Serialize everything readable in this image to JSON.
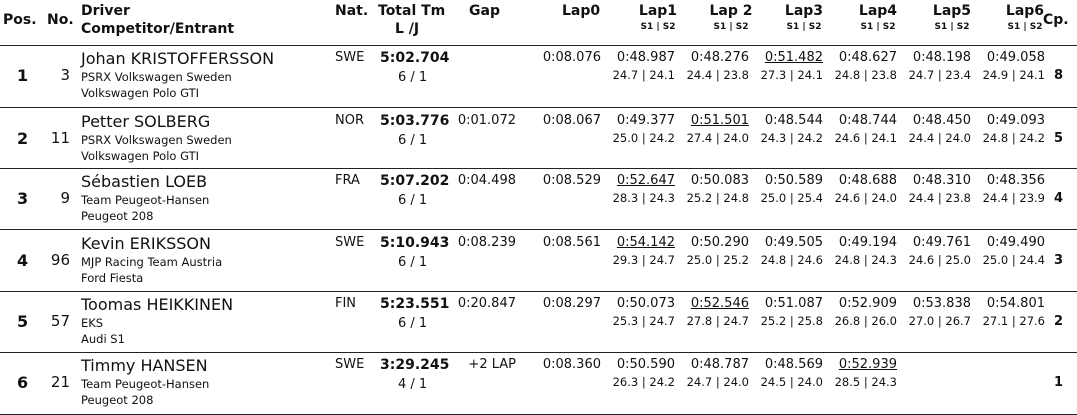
{
  "header": {
    "pos": "Pos.",
    "no": "No.",
    "driver": "Driver",
    "competitor": "Competitor/Entrant",
    "nat": "Nat.",
    "total": "Total Tm",
    "lj": "L /J",
    "gap": "Gap",
    "lap0": "Lap0",
    "laps": [
      "Lap1",
      "Lap 2",
      "Lap3",
      "Lap4",
      "Lap5",
      "Lap6"
    ],
    "split": "S1 | S2",
    "cp": "Cp."
  },
  "rows": [
    {
      "pos": "1",
      "no": "3",
      "driver": "Johan KRISTOFFERSSON",
      "team": "PSRX Volkswagen Sweden",
      "car": "Volkswagen Polo GTI",
      "nat": "SWE",
      "total": "5:02.704",
      "lj": "6 / 1",
      "gap": "",
      "lap0": "0:08.076",
      "laps": [
        {
          "t": "0:48.987",
          "s": "24.7 | 24.1",
          "u": false
        },
        {
          "t": "0:48.276",
          "s": "24.4 | 23.8",
          "u": false
        },
        {
          "t": "0:51.482",
          "s": "27.3 | 24.1",
          "u": true
        },
        {
          "t": "0:48.627",
          "s": "24.8 | 23.8",
          "u": false
        },
        {
          "t": "0:48.198",
          "s": "24.7 | 23.4",
          "u": false
        },
        {
          "t": "0:49.058",
          "s": "24.9 | 24.1",
          "u": false
        }
      ],
      "cp": "8"
    },
    {
      "pos": "2",
      "no": "11",
      "driver": "Petter SOLBERG",
      "team": "PSRX Volkswagen Sweden",
      "car": "Volkswagen Polo GTI",
      "nat": "NOR",
      "total": "5:03.776",
      "lj": "6 / 1",
      "gap": "0:01.072",
      "lap0": "0:08.067",
      "laps": [
        {
          "t": "0:49.377",
          "s": "25.0 | 24.2",
          "u": false
        },
        {
          "t": "0:51.501",
          "s": "27.4 | 24.0",
          "u": true
        },
        {
          "t": "0:48.544",
          "s": "24.3 | 24.2",
          "u": false
        },
        {
          "t": "0:48.744",
          "s": "24.6 | 24.1",
          "u": false
        },
        {
          "t": "0:48.450",
          "s": "24.4 | 24.0",
          "u": false
        },
        {
          "t": "0:49.093",
          "s": "24.8 | 24.2",
          "u": false
        }
      ],
      "cp": "5"
    },
    {
      "pos": "3",
      "no": "9",
      "driver": "Sébastien LOEB",
      "team": "Team Peugeot-Hansen",
      "car": "Peugeot 208",
      "nat": "FRA",
      "total": "5:07.202",
      "lj": "6 / 1",
      "gap": "0:04.498",
      "lap0": "0:08.529",
      "laps": [
        {
          "t": "0:52.647",
          "s": "28.3 | 24.3",
          "u": true
        },
        {
          "t": "0:50.083",
          "s": "25.2 | 24.8",
          "u": false
        },
        {
          "t": "0:50.589",
          "s": "25.0 | 25.4",
          "u": false
        },
        {
          "t": "0:48.688",
          "s": "24.6 | 24.0",
          "u": false
        },
        {
          "t": "0:48.310",
          "s": "24.4 | 23.8",
          "u": false
        },
        {
          "t": "0:48.356",
          "s": "24.4 | 23.9",
          "u": false
        }
      ],
      "cp": "4"
    },
    {
      "pos": "4",
      "no": "96",
      "driver": "Kevin ERIKSSON",
      "team": "MJP Racing Team Austria",
      "car": "Ford Fiesta",
      "nat": "SWE",
      "total": "5:10.943",
      "lj": "6 / 1",
      "gap": "0:08.239",
      "lap0": "0:08.561",
      "laps": [
        {
          "t": "0:54.142",
          "s": "29.3 | 24.7",
          "u": true
        },
        {
          "t": "0:50.290",
          "s": "25.0 | 25.2",
          "u": false
        },
        {
          "t": "0:49.505",
          "s": "24.8 | 24.6",
          "u": false
        },
        {
          "t": "0:49.194",
          "s": "24.8 | 24.3",
          "u": false
        },
        {
          "t": "0:49.761",
          "s": "24.6 | 25.0",
          "u": false
        },
        {
          "t": "0:49.490",
          "s": "25.0 | 24.4",
          "u": false
        }
      ],
      "cp": "3"
    },
    {
      "pos": "5",
      "no": "57",
      "driver": "Toomas HEIKKINEN",
      "team": "EKS",
      "car": "Audi S1",
      "nat": "FIN",
      "total": "5:23.551",
      "lj": "6 / 1",
      "gap": "0:20.847",
      "lap0": "0:08.297",
      "laps": [
        {
          "t": "0:50.073",
          "s": "25.3 | 24.7",
          "u": false
        },
        {
          "t": "0:52.546",
          "s": "27.8 | 24.7",
          "u": true
        },
        {
          "t": "0:51.087",
          "s": "25.2 | 25.8",
          "u": false
        },
        {
          "t": "0:52.909",
          "s": "26.8 | 26.0",
          "u": false
        },
        {
          "t": "0:53.838",
          "s": "27.0 | 26.7",
          "u": false
        },
        {
          "t": "0:54.801",
          "s": "27.1 | 27.6",
          "u": false
        }
      ],
      "cp": "2"
    },
    {
      "pos": "6",
      "no": "21",
      "driver": "Timmy HANSEN",
      "team": "Team Peugeot-Hansen",
      "car": "Peugeot 208",
      "nat": "SWE",
      "total": "3:29.245",
      "lj": "4 / 1",
      "gap": "+2 LAP",
      "lap0": "0:08.360",
      "laps": [
        {
          "t": "0:50.590",
          "s": "26.3 | 24.2",
          "u": false
        },
        {
          "t": "0:48.787",
          "s": "24.7 | 24.0",
          "u": false
        },
        {
          "t": "0:48.569",
          "s": "24.5 | 24.0",
          "u": false
        },
        {
          "t": "0:52.939",
          "s": "28.5 | 24.3",
          "u": true
        },
        {
          "t": "",
          "s": "",
          "u": false
        },
        {
          "t": "",
          "s": "",
          "u": false
        }
      ],
      "cp": "1"
    }
  ]
}
